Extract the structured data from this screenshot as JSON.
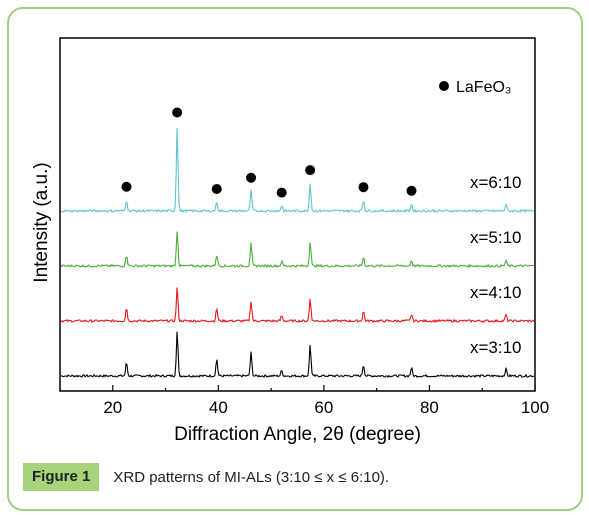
{
  "caption": {
    "label": "Figure 1",
    "text": "XRD patterns of MI-ALs (3:10 ≤ x ≤ 6:10)."
  },
  "chart_data": {
    "type": "line",
    "xlabel": "Diffraction Angle, 2θ (degree)",
    "ylabel": "Intensity (a.u.)",
    "xlim": [
      10,
      100
    ],
    "xticks": [
      20,
      40,
      60,
      80,
      100
    ],
    "grid": false,
    "legend": {
      "marker": "filled-circle",
      "label": "LaFeO₃",
      "placement": "top-right"
    },
    "peaks_2theta": [
      22.6,
      32.2,
      39.7,
      46.2,
      52.0,
      57.4,
      67.5,
      76.6,
      94.5
    ],
    "marked_peaks_2theta": [
      22.6,
      32.2,
      39.7,
      46.2,
      52.0,
      57.4,
      67.5,
      76.6
    ],
    "series": [
      {
        "name": "x=3:10",
        "color": "#000000",
        "offset": 0,
        "intensities": [
          0.3,
          1.0,
          0.38,
          0.52,
          0.12,
          0.7,
          0.25,
          0.18,
          0.16
        ]
      },
      {
        "name": "x=4:10",
        "color": "#e8161c",
        "offset": 55,
        "intensities": [
          0.3,
          0.75,
          0.28,
          0.45,
          0.12,
          0.5,
          0.22,
          0.15,
          0.14
        ]
      },
      {
        "name": "x=5:10",
        "color": "#4cad3a",
        "offset": 110,
        "intensities": [
          0.25,
          0.8,
          0.25,
          0.5,
          0.1,
          0.55,
          0.2,
          0.13,
          0.12
        ]
      },
      {
        "name": "x=6:10",
        "color": "#5fc3cf",
        "offset": 165,
        "intensities": [
          0.25,
          1.9,
          0.2,
          0.45,
          0.12,
          0.62,
          0.24,
          0.16,
          0.15
        ]
      }
    ]
  }
}
